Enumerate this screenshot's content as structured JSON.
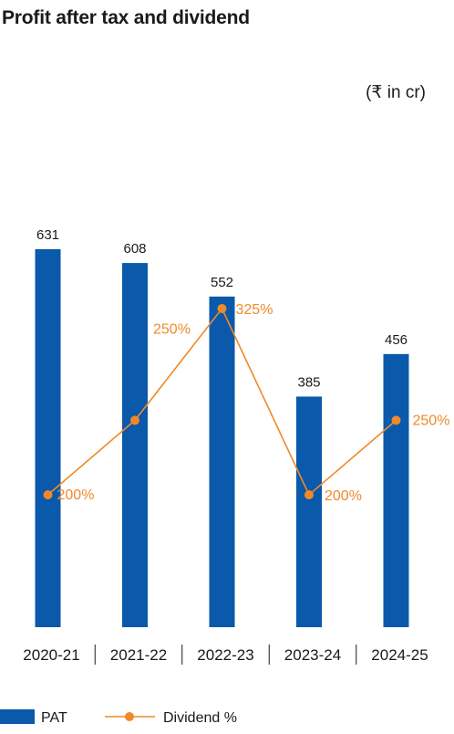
{
  "page": {
    "title": "Profit after tax and dividend",
    "unit": "(₹ in cr)"
  },
  "chart_data": {
    "type": "bar",
    "categories": [
      "2020-21",
      "2021-22",
      "2022-23",
      "2023-24",
      "2024-25"
    ],
    "series": [
      {
        "name": "PAT",
        "type": "bar",
        "values": [
          631,
          608,
          552,
          385,
          456
        ],
        "color": "#0a59aa"
      },
      {
        "name": "Dividend %",
        "type": "line",
        "values": [
          200,
          250,
          325,
          200,
          250
        ],
        "labels": [
          "200%",
          "250%",
          "325%",
          "200%",
          "250%"
        ],
        "color": "#f0892a"
      }
    ],
    "legend_position": "bottom-left",
    "grid": false
  }
}
